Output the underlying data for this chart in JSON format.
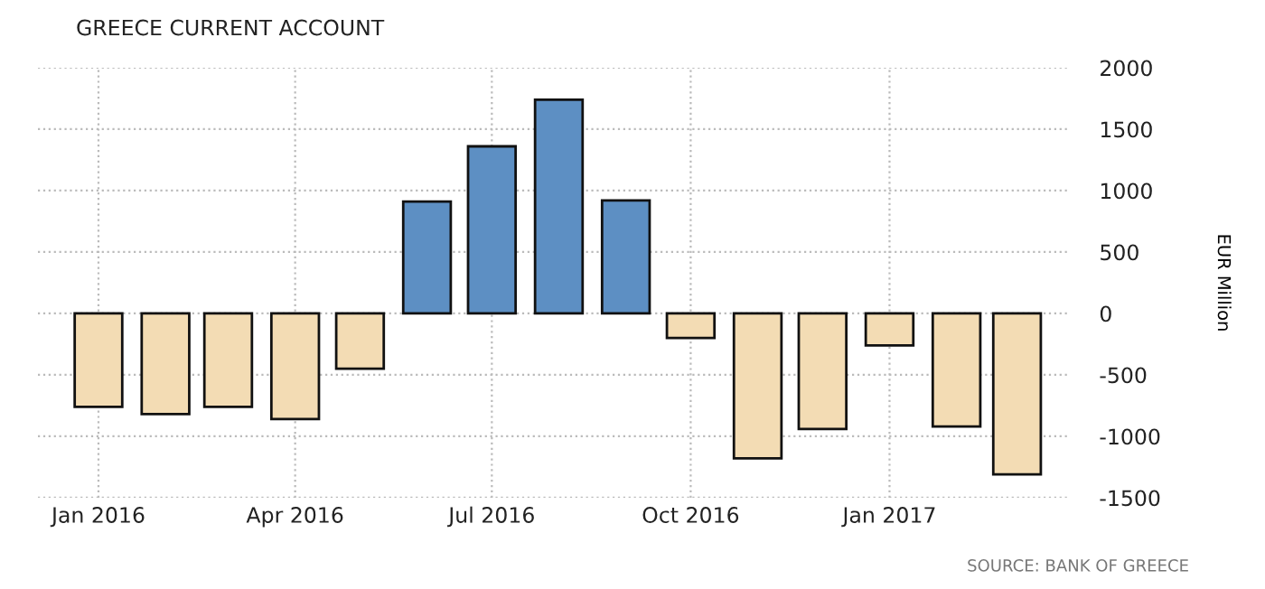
{
  "chart_data": {
    "type": "bar",
    "title": "GREECE CURRENT ACCOUNT",
    "ylabel": "EUR Million",
    "x": [
      "2016-01",
      "2016-02",
      "2016-03",
      "2016-04",
      "2016-05",
      "2016-06",
      "2016-07",
      "2016-08",
      "2016-09",
      "2016-10",
      "2016-11",
      "2016-12",
      "2017-01",
      "2017-02",
      "2017-03"
    ],
    "values": [
      -760,
      -820,
      -760,
      -860,
      -450,
      910,
      1360,
      1740,
      920,
      -200,
      -1180,
      -940,
      -260,
      -920,
      -1310
    ],
    "colors": [
      "#f3dcb4",
      "#f3dcb4",
      "#f3dcb4",
      "#f3dcb4",
      "#f3dcb4",
      "#5d8fc3",
      "#5d8fc3",
      "#5d8fc3",
      "#5d8fc3",
      "#f3dcb4",
      "#f3dcb4",
      "#f3dcb4",
      "#f3dcb4",
      "#f3dcb4",
      "#f3dcb4"
    ],
    "xlim": [
      "2015-12-04",
      "2017-03-25"
    ],
    "xticks": [
      {
        "value": "2016-01",
        "label": "Jan 2016"
      },
      {
        "value": "2016-04",
        "label": "Apr 2016"
      },
      {
        "value": "2016-07",
        "label": "Jul 2016"
      },
      {
        "value": "2016-10",
        "label": "Oct 2016"
      },
      {
        "value": "2017-01",
        "label": "Jan 2017"
      }
    ],
    "ylim": [
      -1500,
      2000
    ],
    "yticks": [
      -1500,
      -1000,
      -500,
      0,
      500,
      1000,
      1500,
      2000
    ],
    "grid": true,
    "annotations": [
      "SOURCE: BANK OF GREECE"
    ]
  }
}
